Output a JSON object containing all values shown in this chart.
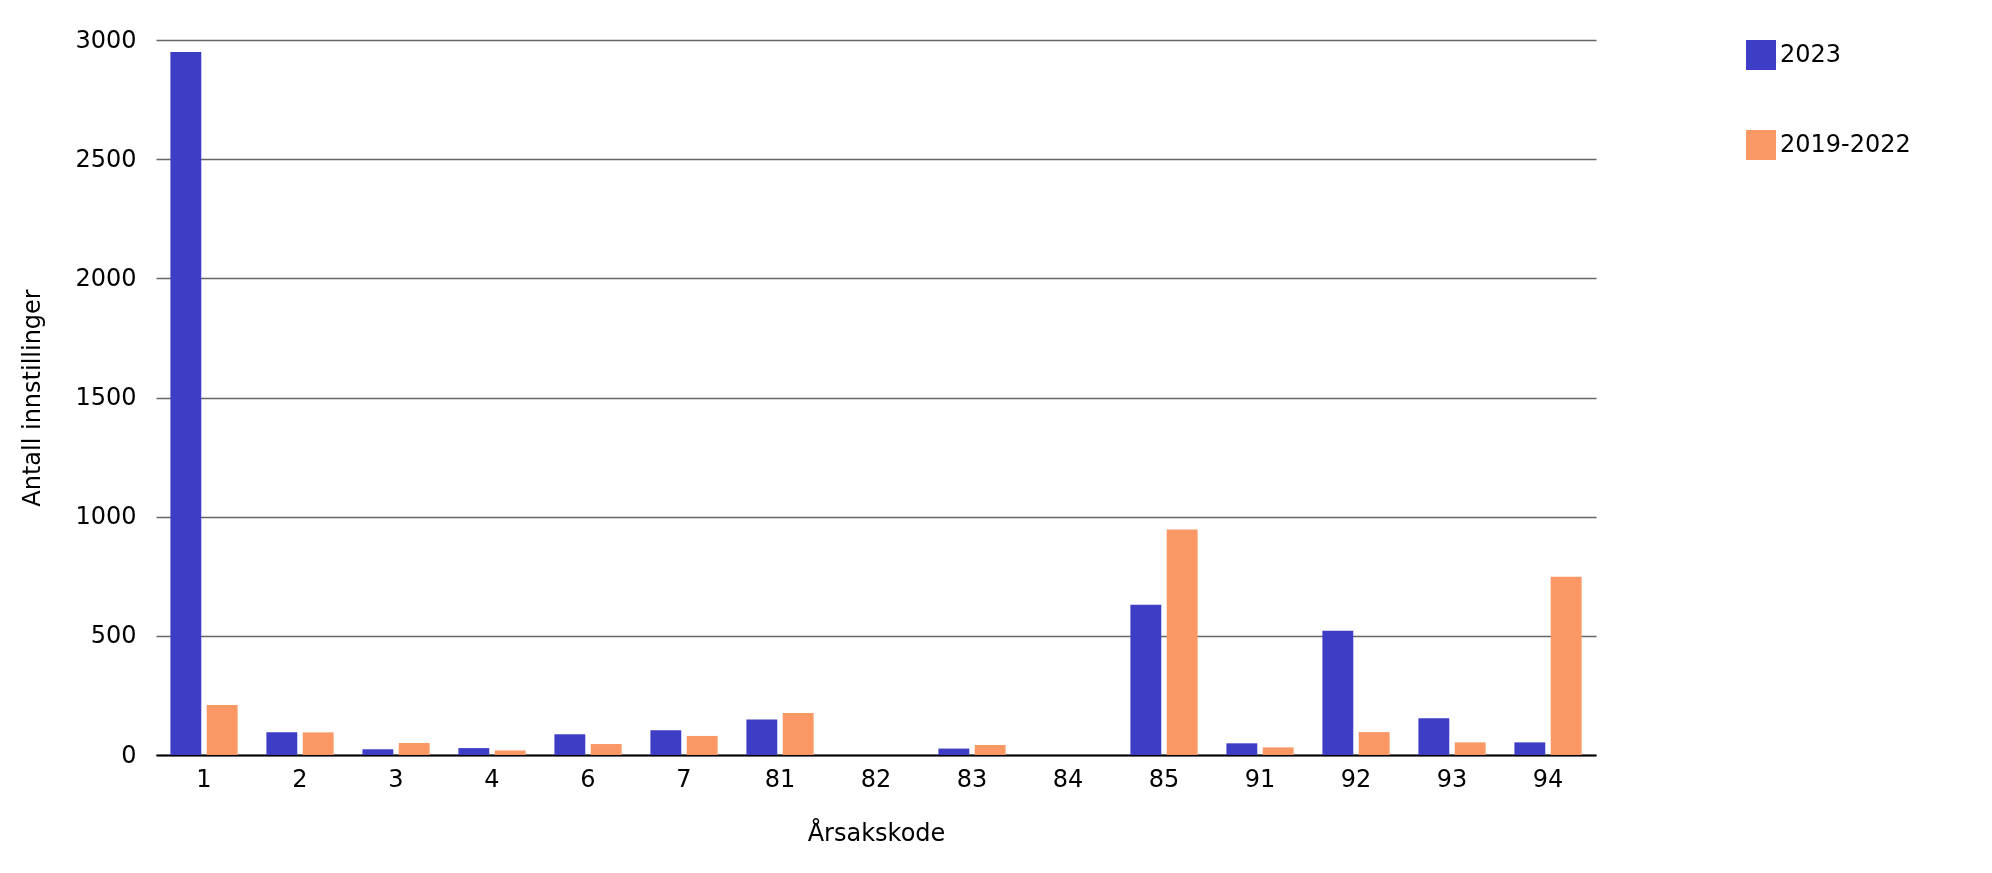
{
  "chart_data": {
    "type": "bar",
    "xlabel": "Årsakskode",
    "ylabel": "Antall innstillinger",
    "categories": [
      "1",
      "2",
      "3",
      "4",
      "6",
      "7",
      "81",
      "82",
      "83",
      "84",
      "85",
      "91",
      "92",
      "93",
      "94"
    ],
    "series": [
      {
        "name": "2023",
        "color": "#3e3dc6",
        "values": [
          2950,
          95,
          24,
          29,
          87,
          104,
          149,
          null,
          27,
          null,
          630,
          49,
          521,
          154,
          53
        ]
      },
      {
        "name": "2019-2022",
        "color": "#f99865",
        "values": [
          210,
          95,
          50,
          19,
          46,
          80,
          176,
          null,
          42,
          null,
          946,
          32,
          96,
          53,
          748
        ]
      }
    ],
    "ylim": [
      0,
      3000
    ],
    "yticks": [
      0,
      500,
      1000,
      1500,
      2000,
      2500,
      3000
    ],
    "grid": "y",
    "legend": "top right"
  }
}
